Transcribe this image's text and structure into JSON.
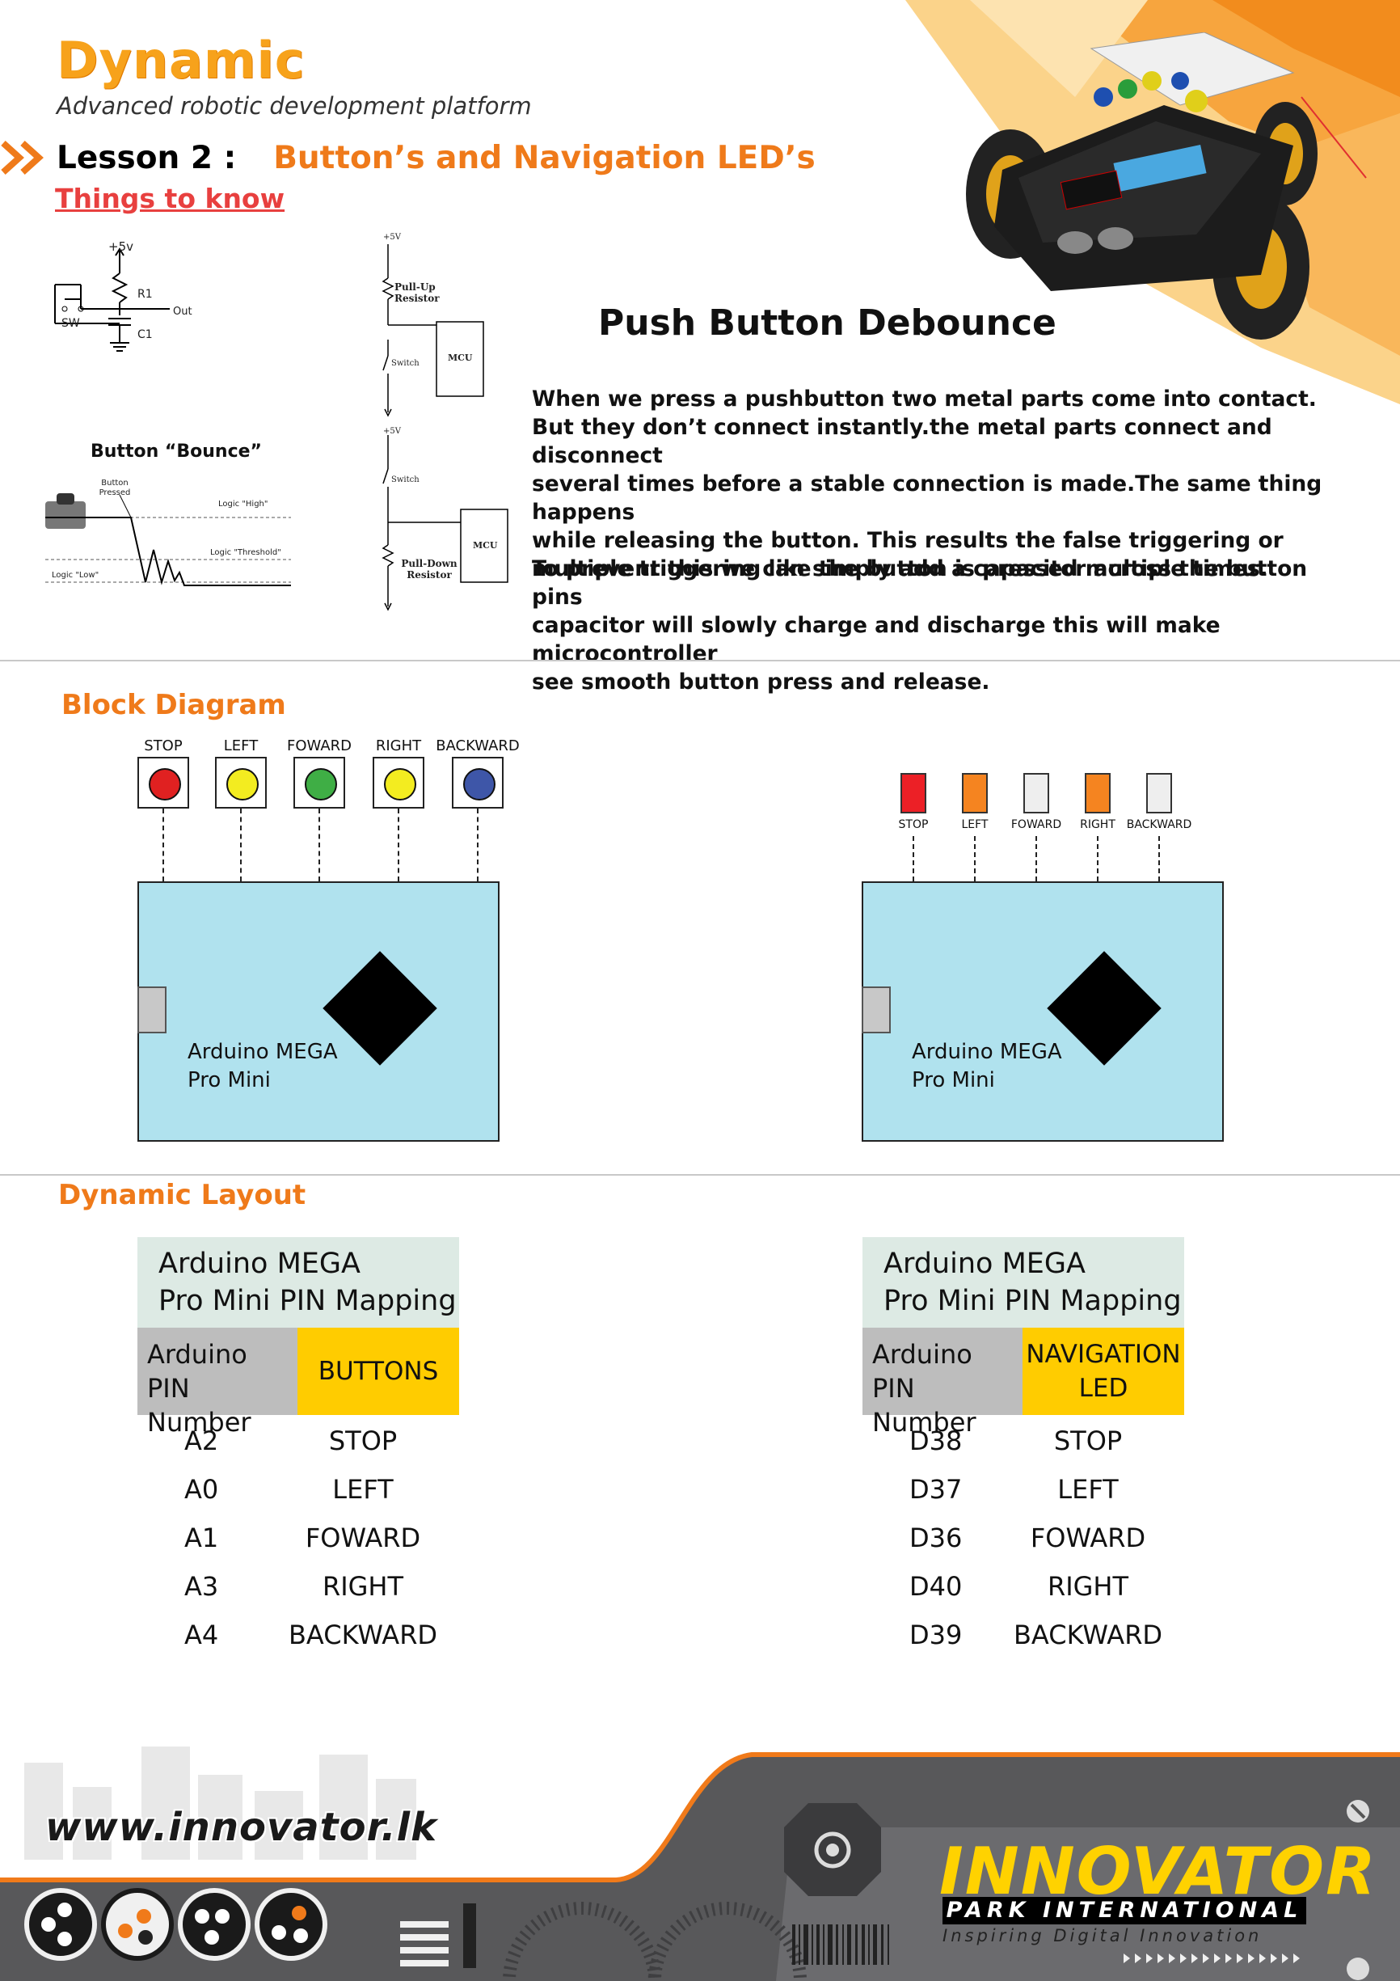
{
  "header": {
    "brand": "Dynamic",
    "tagline": "Advanced robotic development platform",
    "lesson_label": "Lesson 2 :",
    "lesson_title": "Button’s and Navigation LED’s",
    "things_to_know": "Things to know"
  },
  "schematics": {
    "rc_plus": "+5v",
    "rc_r1": "R1",
    "rc_out": "Out",
    "rc_sw": "SW",
    "rc_c1": "C1",
    "pullup_v": "+5V",
    "pullup_resistor": "Pull-Up Resistor",
    "pullup_switch": "Switch",
    "pullup_mcu": "MCU",
    "pulldown_v": "+5V",
    "pulldown_switch": "Switch",
    "pulldown_resistor": "Pull-Down Resistor",
    "pulldown_mcu": "MCU",
    "bounce_title": "Button “Bounce”",
    "bounce_pressed": "Button Pressed",
    "logic_high": "Logic \"High\"",
    "logic_threshold": "Logic \"Threshold\"",
    "logic_low": "Logic \"Low\""
  },
  "debounce": {
    "title": "Push Button Debounce",
    "para1": [
      "When we press a pushbutton two metal parts come into contact.",
      "But they don’t connect instantly.the metal parts connect and disconnect",
      "several times before a stable connection is made.The same thing happens",
      "while releasing the button. This results the false triggering or",
      "multiple triggering like the button is pressed multiple times."
    ],
    "para2": [
      "To prevent this we can simply add a capacitor across the button pins",
      "capacitor will slowly charge and discharge this will make microcontroller",
      "see smooth button press and release."
    ]
  },
  "block_diagram": {
    "title": "Block Diagram",
    "board_label_1": "Arduino MEGA",
    "board_label_2": "Pro Mini",
    "buttons": [
      {
        "label": "STOP",
        "color": "#e02121"
      },
      {
        "label": "LEFT",
        "color": "#f3ec20"
      },
      {
        "label": "FOWARD",
        "color": "#3fae45"
      },
      {
        "label": "RIGHT",
        "color": "#f3ec20"
      },
      {
        "label": "BACKWARD",
        "color": "#3e56a8"
      }
    ],
    "leds": [
      {
        "label": "STOP",
        "color": "#ec2026"
      },
      {
        "label": "LEFT",
        "color": "#f58420"
      },
      {
        "label": "FOWARD",
        "color": "#eeeeee"
      },
      {
        "label": "RIGHT",
        "color": "#f58420"
      },
      {
        "label": "BACKWARD",
        "color": "#eeeeee"
      }
    ]
  },
  "layout": {
    "title": "Dynamic Layout",
    "buttons_table": {
      "head_1": "Arduino MEGA",
      "head_2": "Pro Mini PIN Mapping",
      "col_pin_1": "Arduino",
      "col_pin_2": "PIN Number",
      "col_kind": "BUTTONS",
      "rows": [
        {
          "pin": "A2",
          "name": "STOP"
        },
        {
          "pin": "A0",
          "name": "LEFT"
        },
        {
          "pin": "A1",
          "name": "FOWARD"
        },
        {
          "pin": "A3",
          "name": "RIGHT"
        },
        {
          "pin": "A4",
          "name": "BACKWARD"
        }
      ]
    },
    "leds_table": {
      "head_1": "Arduino MEGA",
      "head_2": "Pro Mini PIN Mapping",
      "col_pin_1": "Arduino",
      "col_pin_2": "PIN Number",
      "col_kind_1": "NAVIGATION",
      "col_kind_2": "LED",
      "rows": [
        {
          "pin": "D38",
          "name": "STOP"
        },
        {
          "pin": "D37",
          "name": "LEFT"
        },
        {
          "pin": "D36",
          "name": "FOWARD"
        },
        {
          "pin": "D40",
          "name": "RIGHT"
        },
        {
          "pin": "D39",
          "name": "BACKWARD"
        }
      ]
    }
  },
  "footer": {
    "url": "www.innovator.lk",
    "logo_main": "INNOVATOR",
    "logo_sub": "PARK INTERNATIONAL",
    "logo_tag": "Inspiring Digital Innovation"
  }
}
